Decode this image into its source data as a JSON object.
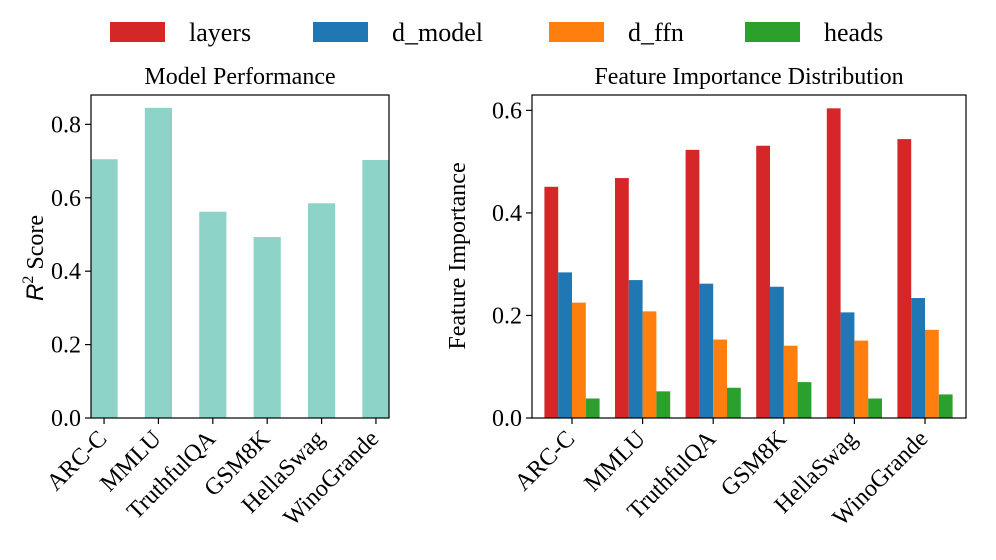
{
  "legend": {
    "position": "top-center",
    "items": [
      {
        "label": "layers",
        "color": "#d62728"
      },
      {
        "label": "d_model",
        "color": "#1f77b4"
      },
      {
        "label": "d_ffn",
        "color": "#ff7f0e"
      },
      {
        "label": "heads",
        "color": "#2ca02c"
      }
    ]
  },
  "chart_data": [
    {
      "type": "bar",
      "title": "Model Performance",
      "xlabel": "",
      "ylabel_symbol": "R",
      "ylabel_exponent": "2",
      "ylabel_word": "Score",
      "categories": [
        "ARC-C",
        "MMLU",
        "TruthfulQA",
        "GSM8K",
        "HellaSwag",
        "WinoGrande"
      ],
      "values": [
        0.705,
        0.845,
        0.562,
        0.493,
        0.585,
        0.703
      ],
      "color": "#8dd3c7",
      "ylim": [
        0,
        0.88
      ],
      "yticks": [
        0.0,
        0.2,
        0.4,
        0.6,
        0.8
      ],
      "ytick_labels": [
        "0.0",
        "0.2",
        "0.4",
        "0.6",
        "0.8"
      ],
      "grid": false
    },
    {
      "type": "bar",
      "title": "Feature Importance Distribution",
      "xlabel": "",
      "ylabel": "Feature Importance",
      "categories": [
        "ARC-C",
        "MMLU",
        "TruthfulQA",
        "GSM8K",
        "HellaSwag",
        "WinoGrande"
      ],
      "series_order": [
        "layers",
        "d_model",
        "d_ffn",
        "heads"
      ],
      "series": [
        {
          "name": "layers",
          "color": "#d62728",
          "values": [
            0.451,
            0.468,
            0.523,
            0.531,
            0.604,
            0.544
          ]
        },
        {
          "name": "d_model",
          "color": "#1f77b4",
          "values": [
            0.284,
            0.269,
            0.262,
            0.256,
            0.206,
            0.234
          ]
        },
        {
          "name": "d_ffn",
          "color": "#ff7f0e",
          "values": [
            0.225,
            0.208,
            0.153,
            0.141,
            0.151,
            0.172
          ]
        },
        {
          "name": "heads",
          "color": "#2ca02c",
          "values": [
            0.038,
            0.052,
            0.059,
            0.07,
            0.038,
            0.046
          ]
        }
      ],
      "ylim": [
        0,
        0.63
      ],
      "yticks": [
        0.0,
        0.2,
        0.4,
        0.6
      ],
      "ytick_labels": [
        "0.0",
        "0.2",
        "0.4",
        "0.6"
      ],
      "grid": false
    }
  ]
}
